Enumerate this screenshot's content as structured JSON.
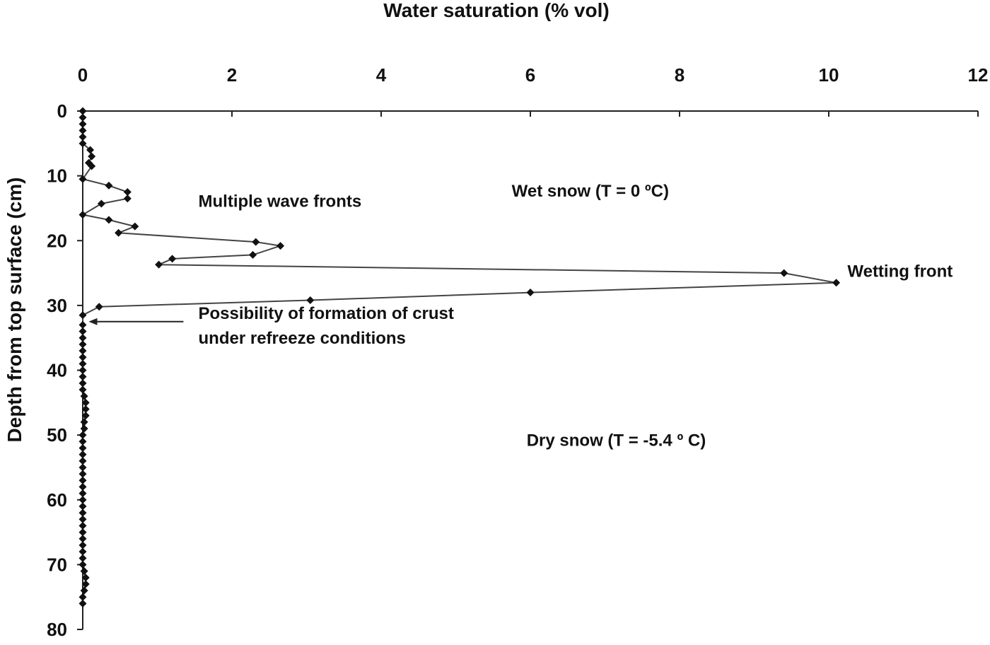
{
  "chart_data": {
    "type": "line",
    "title": "",
    "xlabel": "Water saturation (% vol)",
    "ylabel": "Depth from top surface (cm)",
    "x_axis_position": "top",
    "y_axis_reversed": true,
    "xlim": [
      0,
      12
    ],
    "ylim": [
      0,
      80
    ],
    "xticks": [
      "0",
      "2",
      "4",
      "6",
      "8",
      "10",
      "12"
    ],
    "yticks": [
      "0",
      "10",
      "20",
      "30",
      "40",
      "50",
      "60",
      "70",
      "80"
    ],
    "grid": false,
    "series": [
      {
        "color": "#444444",
        "marker": "diamond",
        "points": [
          {
            "x": 0.0,
            "y": 0
          },
          {
            "x": 0.0,
            "y": 1
          },
          {
            "x": 0.0,
            "y": 2
          },
          {
            "x": 0.0,
            "y": 3
          },
          {
            "x": 0.0,
            "y": 4
          },
          {
            "x": 0.0,
            "y": 5
          },
          {
            "x": 0.1,
            "y": 6
          },
          {
            "x": 0.12,
            "y": 7
          },
          {
            "x": 0.08,
            "y": 8
          },
          {
            "x": 0.12,
            "y": 8.5
          },
          {
            "x": 0.0,
            "y": 10.5
          },
          {
            "x": 0.35,
            "y": 11.5
          },
          {
            "x": 0.6,
            "y": 12.5
          },
          {
            "x": 0.6,
            "y": 13.5
          },
          {
            "x": 0.25,
            "y": 14.3
          },
          {
            "x": 0.0,
            "y": 16
          },
          {
            "x": 0.35,
            "y": 16.8
          },
          {
            "x": 0.7,
            "y": 17.8
          },
          {
            "x": 0.48,
            "y": 18.8
          },
          {
            "x": 2.32,
            "y": 20.2
          },
          {
            "x": 2.65,
            "y": 20.8
          },
          {
            "x": 2.28,
            "y": 22.2
          },
          {
            "x": 1.2,
            "y": 22.8
          },
          {
            "x": 1.02,
            "y": 23.7
          },
          {
            "x": 9.4,
            "y": 25
          },
          {
            "x": 10.1,
            "y": 26.5
          },
          {
            "x": 6.0,
            "y": 28
          },
          {
            "x": 3.05,
            "y": 29.2
          },
          {
            "x": 0.22,
            "y": 30.2
          },
          {
            "x": 0.0,
            "y": 31.5
          },
          {
            "x": 0.0,
            "y": 33
          },
          {
            "x": 0.0,
            "y": 34
          },
          {
            "x": 0.0,
            "y": 35
          },
          {
            "x": 0.0,
            "y": 36
          },
          {
            "x": 0.0,
            "y": 37
          },
          {
            "x": 0.0,
            "y": 38
          },
          {
            "x": 0.0,
            "y": 39
          },
          {
            "x": 0.0,
            "y": 40
          },
          {
            "x": 0.0,
            "y": 41
          },
          {
            "x": 0.0,
            "y": 42
          },
          {
            "x": 0.0,
            "y": 43
          },
          {
            "x": 0.02,
            "y": 44
          },
          {
            "x": 0.04,
            "y": 45
          },
          {
            "x": 0.04,
            "y": 46
          },
          {
            "x": 0.04,
            "y": 47
          },
          {
            "x": 0.02,
            "y": 48
          },
          {
            "x": 0.02,
            "y": 49
          },
          {
            "x": 0.0,
            "y": 50
          },
          {
            "x": 0.0,
            "y": 51
          },
          {
            "x": 0.0,
            "y": 52
          },
          {
            "x": 0.0,
            "y": 53
          },
          {
            "x": 0.0,
            "y": 54
          },
          {
            "x": 0.0,
            "y": 55
          },
          {
            "x": 0.0,
            "y": 56
          },
          {
            "x": 0.0,
            "y": 57
          },
          {
            "x": 0.0,
            "y": 58
          },
          {
            "x": 0.0,
            "y": 59
          },
          {
            "x": 0.0,
            "y": 60
          },
          {
            "x": 0.0,
            "y": 61
          },
          {
            "x": 0.0,
            "y": 62
          },
          {
            "x": 0.0,
            "y": 63
          },
          {
            "x": 0.0,
            "y": 64
          },
          {
            "x": 0.0,
            "y": 65
          },
          {
            "x": 0.0,
            "y": 66
          },
          {
            "x": 0.0,
            "y": 67
          },
          {
            "x": 0.0,
            "y": 68
          },
          {
            "x": 0.0,
            "y": 69
          },
          {
            "x": 0.0,
            "y": 70
          },
          {
            "x": 0.02,
            "y": 71
          },
          {
            "x": 0.04,
            "y": 72
          },
          {
            "x": 0.04,
            "y": 73
          },
          {
            "x": 0.02,
            "y": 74
          },
          {
            "x": 0.0,
            "y": 75
          },
          {
            "x": 0.0,
            "y": 76
          }
        ]
      }
    ],
    "annotations": [
      {
        "name": "annotation-multiple-wave-fronts",
        "text": "Multiple wave fronts",
        "x": 1.55,
        "y": 14.8
      },
      {
        "name": "annotation-wet-snow",
        "text": "Wet  snow (T = 0 ºC)",
        "x": 5.75,
        "y": 13.2
      },
      {
        "name": "annotation-wetting-front",
        "text": "Wetting front",
        "x": 10.25,
        "y": 25.6
      },
      {
        "name": "annotation-crust-line1",
        "text": "Possibility of formation of crust",
        "x": 1.55,
        "y": 32.1
      },
      {
        "name": "annotation-crust-line2",
        "text": "under refreeze conditions",
        "x": 1.55,
        "y": 35.9
      },
      {
        "name": "annotation-dry-snow",
        "text": "Dry snow (T = -5.4 º C)",
        "x": 5.95,
        "y": 51.7
      }
    ],
    "arrow": {
      "from": {
        "x": 1.35,
        "y": 32.5
      },
      "to": {
        "x": 0.1,
        "y": 32.5
      }
    }
  }
}
